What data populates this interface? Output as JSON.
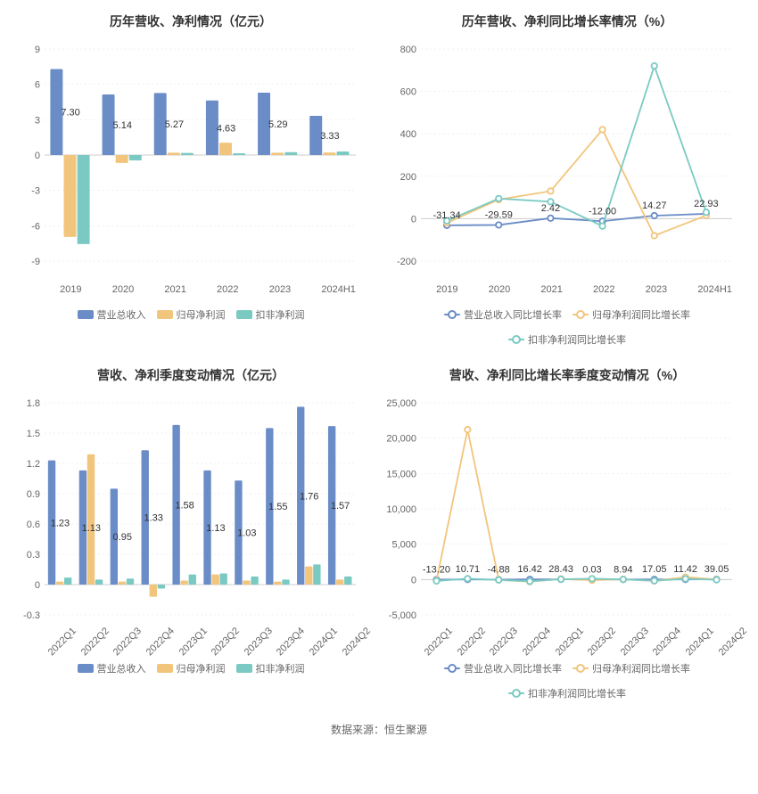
{
  "colors": {
    "series_blue": "#6a8cc7",
    "series_orange": "#f2c57c",
    "series_teal": "#7acac3",
    "grid": "#e0e0e0",
    "axis": "#cccccc",
    "text": "#666666",
    "title": "#333333",
    "bg": "#ffffff"
  },
  "fonts": {
    "title_size": 14,
    "axis_size": 11,
    "label_size": 11
  },
  "footer": "数据来源：恒生聚源",
  "panels": {
    "annual_bar": {
      "title": "历年营收、净利情况（亿元）",
      "type": "bar",
      "categories": [
        "2019",
        "2020",
        "2021",
        "2022",
        "2023",
        "2024H1"
      ],
      "series": [
        {
          "name": "营业总收入",
          "color": "#6a8cc7",
          "values": [
            7.3,
            5.14,
            5.27,
            4.63,
            5.29,
            3.33
          ]
        },
        {
          "name": "归母净利润",
          "color": "#f2c57c",
          "values": [
            -6.95,
            -0.67,
            0.2,
            1.05,
            0.2,
            0.22
          ]
        },
        {
          "name": "扣非净利润",
          "color": "#7acac3",
          "values": [
            -7.55,
            -0.45,
            0.18,
            0.15,
            0.25,
            0.3
          ]
        }
      ],
      "value_labels": [
        "7.30",
        "5.14",
        "5.27",
        "4.63",
        "5.29",
        "3.33"
      ],
      "ylim": [
        -9,
        9
      ],
      "ytick_step": 3,
      "yticks": [
        -9,
        -6,
        -3,
        0,
        3,
        6,
        9
      ],
      "bar_group_width": 0.78,
      "bar_gap": 0.02,
      "legend": [
        "营业总收入",
        "归母净利润",
        "扣非净利润"
      ]
    },
    "annual_growth": {
      "title": "历年营收、净利同比增长率情况（%）",
      "type": "line",
      "categories": [
        "2019",
        "2020",
        "2021",
        "2022",
        "2023",
        "2024H1"
      ],
      "series": [
        {
          "name": "营业总收入同比增长率",
          "color": "#6a8cc7",
          "values": [
            -31.34,
            -29.59,
            2.42,
            -12.0,
            14.27,
            22.93
          ]
        },
        {
          "name": "归母净利润同比增长率",
          "color": "#f2c57c",
          "values": [
            -20,
            90,
            130,
            420,
            -80,
            15
          ]
        },
        {
          "name": "扣非净利润同比增长率",
          "color": "#7acac3",
          "values": [
            -10,
            95,
            80,
            -35,
            720,
            30
          ]
        }
      ],
      "value_labels": [
        "-31.34",
        "-29.59",
        "2.42",
        "-12.00",
        "14.27",
        "22.93"
      ],
      "ylim": [
        -200,
        800
      ],
      "ytick_step": 200,
      "yticks": [
        -200,
        0,
        200,
        400,
        600,
        800
      ],
      "legend": [
        "营业总收入同比增长率",
        "归母净利润同比增长率",
        "扣非净利润同比增长率"
      ]
    },
    "quarterly_bar": {
      "title": "营收、净利季度变动情况（亿元）",
      "type": "bar",
      "categories": [
        "2022Q1",
        "2022Q2",
        "2022Q3",
        "2022Q4",
        "2023Q1",
        "2023Q2",
        "2023Q3",
        "2023Q4",
        "2024Q1",
        "2024Q2"
      ],
      "series": [
        {
          "name": "营业总收入",
          "color": "#6a8cc7",
          "values": [
            1.23,
            1.13,
            0.95,
            1.33,
            1.58,
            1.13,
            1.03,
            1.55,
            1.76,
            1.57
          ]
        },
        {
          "name": "归母净利润",
          "color": "#f2c57c",
          "values": [
            0.03,
            1.29,
            0.03,
            -0.12,
            0.04,
            0.1,
            0.04,
            0.03,
            0.18,
            0.05
          ]
        },
        {
          "name": "扣非净利润",
          "color": "#7acac3",
          "values": [
            0.07,
            0.05,
            0.06,
            -0.04,
            0.1,
            0.11,
            0.08,
            0.05,
            0.2,
            0.08
          ]
        }
      ],
      "value_labels": [
        "1.23",
        "1.13",
        "0.95",
        "1.33",
        "1.58",
        "1.13",
        "1.03",
        "1.55",
        "1.76",
        "1.57"
      ],
      "ylim": [
        -0.3,
        1.8
      ],
      "ytick_step": 0.3,
      "yticks": [
        -0.3,
        0,
        0.3,
        0.6,
        0.9,
        1.2,
        1.5,
        1.8
      ],
      "bar_group_width": 0.78,
      "bar_gap": 0.02,
      "legend": [
        "营业总收入",
        "归母净利润",
        "扣非净利润"
      ],
      "rotate_xlabels": true
    },
    "quarterly_growth": {
      "title": "营收、净利同比增长率季度变动情况（%）",
      "type": "line",
      "categories": [
        "2022Q1",
        "2022Q2",
        "2022Q3",
        "2022Q4",
        "2023Q1",
        "2023Q2",
        "2023Q3",
        "2023Q4",
        "2024Q1",
        "2024Q2"
      ],
      "series": [
        {
          "name": "营业总收入同比增长率",
          "color": "#6a8cc7",
          "values": [
            -13.2,
            10.71,
            -4.88,
            16.42,
            28.43,
            0.03,
            8.94,
            17.05,
            11.42,
            39.05
          ]
        },
        {
          "name": "归母净利润同比增长率",
          "color": "#f2c57c",
          "values": [
            -150,
            21200,
            -50,
            -300,
            80,
            -92,
            30,
            -200,
            350,
            10
          ]
        },
        {
          "name": "扣非净利润同比增长率",
          "color": "#7acac3",
          "values": [
            -200,
            120,
            -60,
            -250,
            40,
            110,
            20,
            -180,
            100,
            -40
          ]
        }
      ],
      "value_labels": [
        "-13.20",
        "10.71",
        "-4.88",
        "16.42",
        "28.43",
        "0.03",
        "8.94",
        "17.05",
        "11.42",
        "39.05"
      ],
      "ylim": [
        -5000,
        25000
      ],
      "ytick_step": 5000,
      "yticks": [
        -5000,
        0,
        5000,
        10000,
        15000,
        20000,
        25000
      ],
      "legend": [
        "营业总收入同比增长率",
        "归母净利润同比增长率",
        "扣非净利润同比增长率"
      ],
      "rotate_xlabels": true,
      "ytick_format": "comma"
    }
  }
}
